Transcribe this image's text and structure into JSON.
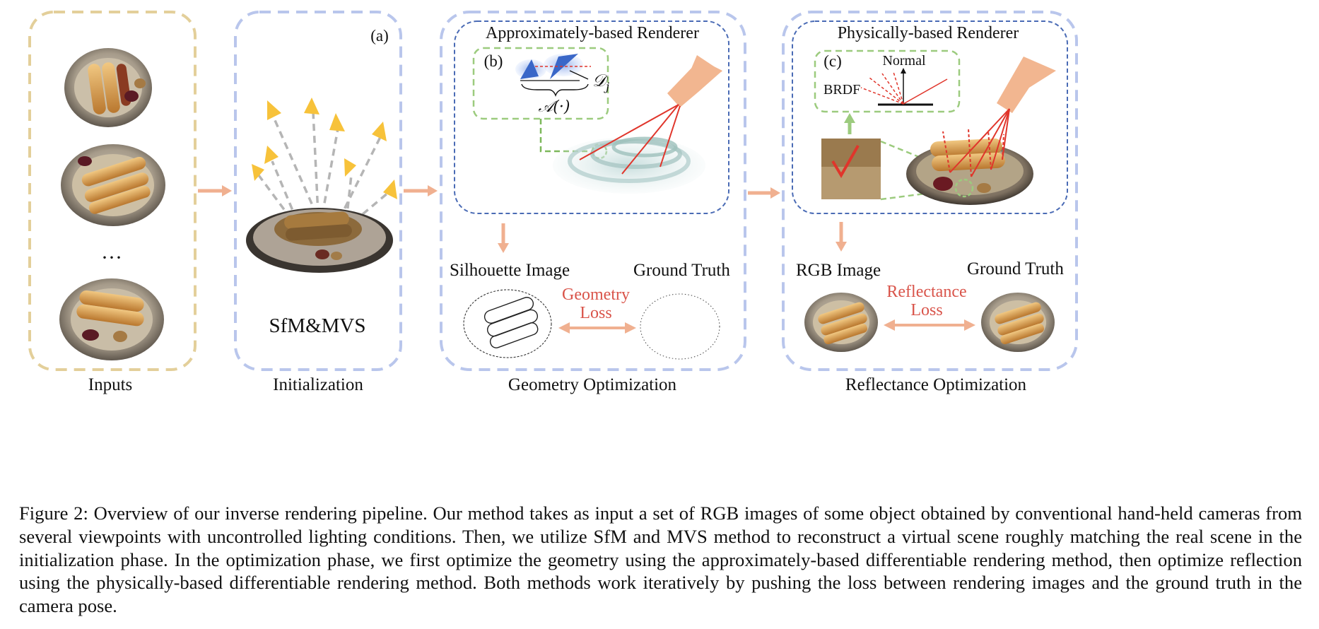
{
  "stages": {
    "inputs": "Inputs",
    "initialization": "Initialization",
    "geometry": "Geometry Optimization",
    "reflectance": "Reflectance Optimization"
  },
  "init": {
    "panel_letter": "(a)",
    "method": "SfM&MVS"
  },
  "inputs": {
    "ellipsis": "···"
  },
  "geometry": {
    "renderer_title": "Approximately-based Renderer",
    "panel_letter": "(b)",
    "operator": "𝒜(·)",
    "depth_symbol": "𝒟",
    "depth_subscript": "j",
    "silhouette_label": "Silhouette Image",
    "ground_truth_label": "Ground Truth",
    "loss_line1": "Geometry",
    "loss_line2": "Loss"
  },
  "reflectance": {
    "renderer_title": "Physically-based Renderer",
    "panel_letter": "(c)",
    "normal_label": "Normal",
    "brdf_label": "BRDF",
    "rgb_label": "RGB Image",
    "ground_truth_label": "Ground Truth",
    "loss_line1": "Reflectance",
    "loss_line2": "Loss"
  },
  "caption": "Figure 2: Overview of our inverse rendering pipeline. Our method takes as input a set of RGB images of some object obtained by conventional hand-held cameras from several viewpoints with uncontrolled lighting conditions. Then, we utilize SfM and MVS method to reconstruct a virtual scene roughly matching the real scene in the initialization phase. In the optimization phase, we first optimize the geometry using the approximately-based differentiable rendering method, then optimize reflection using the physically-based differentiable rendering method. Both methods work iteratively by pushing the loss between rendering images and the ground truth in the camera pose.",
  "colors": {
    "inputs_box": "#e3cf9a",
    "stage_box": "#b9c6ec",
    "renderer_box": "#4a6bb5",
    "detail_box": "#9ccb7e",
    "flow_arrow": "#f0b090",
    "camera": "#f2b690",
    "ray": "#e0352b",
    "loss_text": "#d9544a",
    "init_camera": "#f7c23a"
  }
}
